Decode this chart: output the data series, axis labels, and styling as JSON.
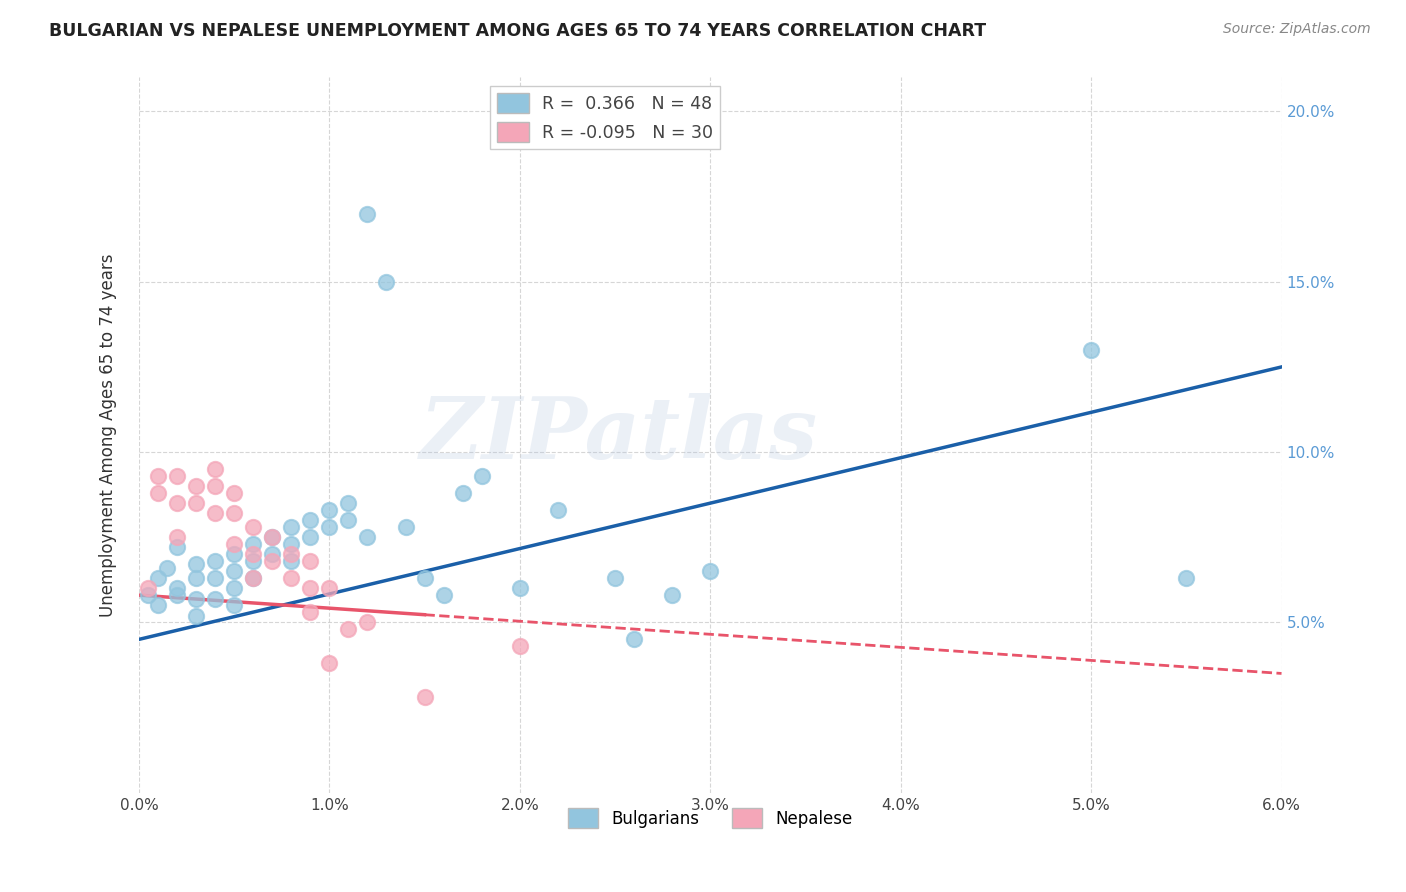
{
  "title": "BULGARIAN VS NEPALESE UNEMPLOYMENT AMONG AGES 65 TO 74 YEARS CORRELATION CHART",
  "source": "Source: ZipAtlas.com",
  "ylabel": "Unemployment Among Ages 65 to 74 years",
  "xlim": [
    0.0,
    0.06
  ],
  "ylim": [
    0.0,
    0.21
  ],
  "yticks": [
    0.05,
    0.1,
    0.15,
    0.2
  ],
  "ytick_labels": [
    "5.0%",
    "10.0%",
    "15.0%",
    "20.0%"
  ],
  "xticks": [
    0.0,
    0.01,
    0.02,
    0.03,
    0.04,
    0.05,
    0.06
  ],
  "xtick_labels": [
    "0.0%",
    "1.0%",
    "2.0%",
    "3.0%",
    "4.0%",
    "5.0%",
    "6.0%"
  ],
  "bulgarian_R": 0.366,
  "bulgarian_N": 48,
  "nepalese_R": -0.095,
  "nepalese_N": 30,
  "bulgarian_color": "#92c5de",
  "nepalese_color": "#f4a6b8",
  "bulgarian_line_color": "#1a5fa8",
  "nepalese_line_color": "#e8546a",
  "watermark_text": "ZIPatlas",
  "bulgarian_x": [
    0.0005,
    0.001,
    0.001,
    0.0015,
    0.002,
    0.002,
    0.002,
    0.003,
    0.003,
    0.003,
    0.003,
    0.004,
    0.004,
    0.004,
    0.005,
    0.005,
    0.005,
    0.005,
    0.006,
    0.006,
    0.006,
    0.007,
    0.007,
    0.008,
    0.008,
    0.008,
    0.009,
    0.009,
    0.01,
    0.01,
    0.011,
    0.011,
    0.012,
    0.012,
    0.013,
    0.014,
    0.015,
    0.016,
    0.017,
    0.018,
    0.02,
    0.022,
    0.025,
    0.026,
    0.028,
    0.03,
    0.05,
    0.055
  ],
  "bulgarian_y": [
    0.058,
    0.063,
    0.055,
    0.066,
    0.06,
    0.058,
    0.072,
    0.067,
    0.063,
    0.057,
    0.052,
    0.068,
    0.063,
    0.057,
    0.07,
    0.065,
    0.06,
    0.055,
    0.073,
    0.068,
    0.063,
    0.075,
    0.07,
    0.078,
    0.073,
    0.068,
    0.08,
    0.075,
    0.083,
    0.078,
    0.085,
    0.08,
    0.17,
    0.075,
    0.15,
    0.078,
    0.063,
    0.058,
    0.088,
    0.093,
    0.06,
    0.083,
    0.063,
    0.045,
    0.058,
    0.065,
    0.13,
    0.063
  ],
  "nepalese_x": [
    0.0005,
    0.001,
    0.001,
    0.002,
    0.002,
    0.002,
    0.003,
    0.003,
    0.004,
    0.004,
    0.004,
    0.005,
    0.005,
    0.005,
    0.006,
    0.006,
    0.006,
    0.007,
    0.007,
    0.008,
    0.008,
    0.009,
    0.009,
    0.009,
    0.01,
    0.01,
    0.011,
    0.012,
    0.015,
    0.02
  ],
  "nepalese_y": [
    0.06,
    0.093,
    0.088,
    0.093,
    0.085,
    0.075,
    0.09,
    0.085,
    0.095,
    0.09,
    0.082,
    0.088,
    0.082,
    0.073,
    0.078,
    0.07,
    0.063,
    0.075,
    0.068,
    0.07,
    0.063,
    0.068,
    0.06,
    0.053,
    0.06,
    0.038,
    0.048,
    0.05,
    0.028,
    0.043
  ]
}
